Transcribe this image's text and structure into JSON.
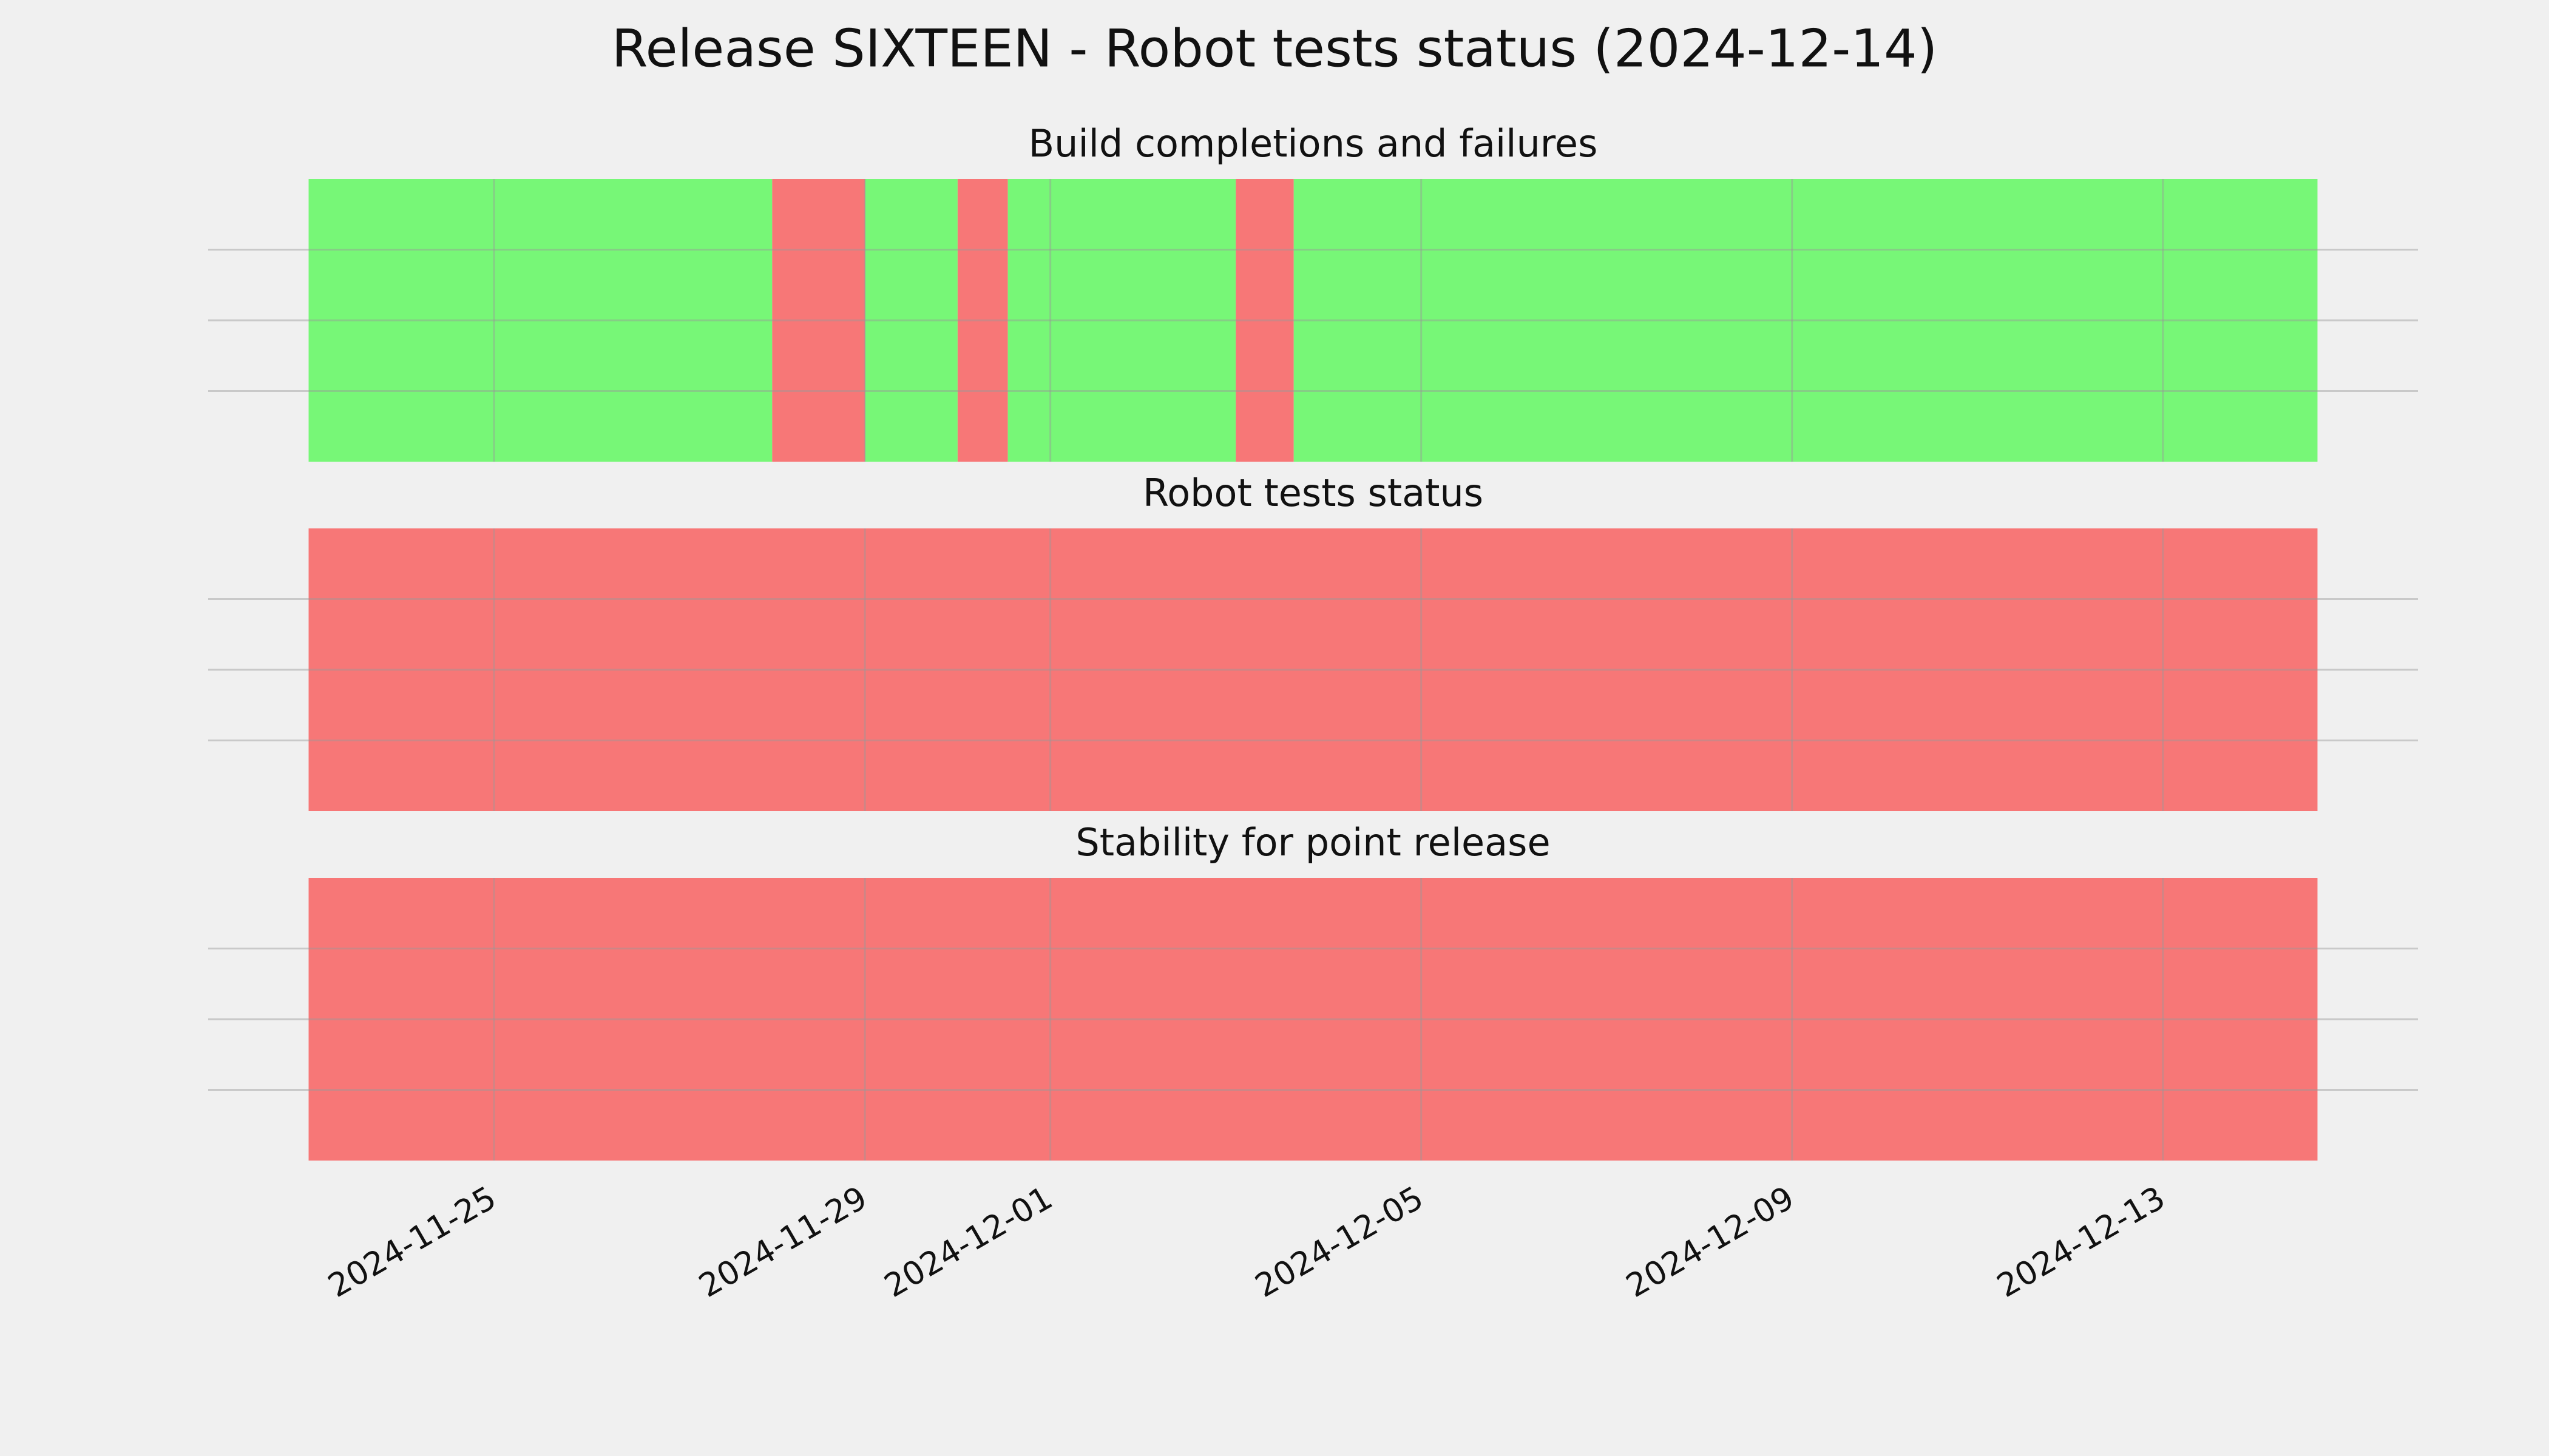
{
  "title": "Release SIXTEEN - Robot tests status (2024-12-14)",
  "chart_data": [
    {
      "type": "span",
      "title": "Build completions and failures",
      "xlim": [
        "2024-11-21T22:00",
        "2024-12-15T18:00"
      ],
      "ylim": [
        0,
        1
      ],
      "yticks": [
        0.25,
        0.5,
        0.75
      ],
      "xticks": [
        "2024-11-25",
        "2024-11-29",
        "2024-12-01",
        "2024-12-05",
        "2024-12-09",
        "2024-12-13"
      ],
      "grid": true,
      "spans": [
        {
          "start": "2024-11-23",
          "end": "2024-11-28",
          "color": "#77f777"
        },
        {
          "start": "2024-11-28",
          "end": "2024-11-29",
          "color": "#f77777"
        },
        {
          "start": "2024-11-29",
          "end": "2024-11-30",
          "color": "#77f777"
        },
        {
          "start": "2024-11-30",
          "end": "2024-11-30T13:00",
          "color": "#f77777"
        },
        {
          "start": "2024-11-30T13:00",
          "end": "2024-12-03",
          "color": "#77f777"
        },
        {
          "start": "2024-12-03",
          "end": "2024-12-03T15:00",
          "color": "#f77777"
        },
        {
          "start": "2024-12-03T15:00",
          "end": "2024-12-14T16:00",
          "color": "#77f777"
        }
      ]
    },
    {
      "type": "span",
      "title": "Robot tests status",
      "xlim": [
        "2024-11-21T22:00",
        "2024-12-15T18:00"
      ],
      "ylim": [
        0,
        1
      ],
      "yticks": [
        0.25,
        0.5,
        0.75
      ],
      "xticks": [
        "2024-11-25",
        "2024-11-29",
        "2024-12-01",
        "2024-12-05",
        "2024-12-09",
        "2024-12-13"
      ],
      "grid": true,
      "spans": [
        {
          "start": "2024-11-23",
          "end": "2024-12-14T16:00",
          "color": "#f77777"
        }
      ]
    },
    {
      "type": "span",
      "title": "Stability for point release",
      "xlim": [
        "2024-11-21T22:00",
        "2024-12-15T18:00"
      ],
      "ylim": [
        0,
        1
      ],
      "yticks": [
        0.25,
        0.5,
        0.75
      ],
      "xticks": [
        "2024-11-25",
        "2024-11-29",
        "2024-12-01",
        "2024-12-05",
        "2024-12-09",
        "2024-12-13"
      ],
      "grid": true,
      "show_xtick_labels": true,
      "spans": [
        {
          "start": "2024-11-23",
          "end": "2024-12-14T16:00",
          "color": "#f77777"
        }
      ]
    }
  ]
}
